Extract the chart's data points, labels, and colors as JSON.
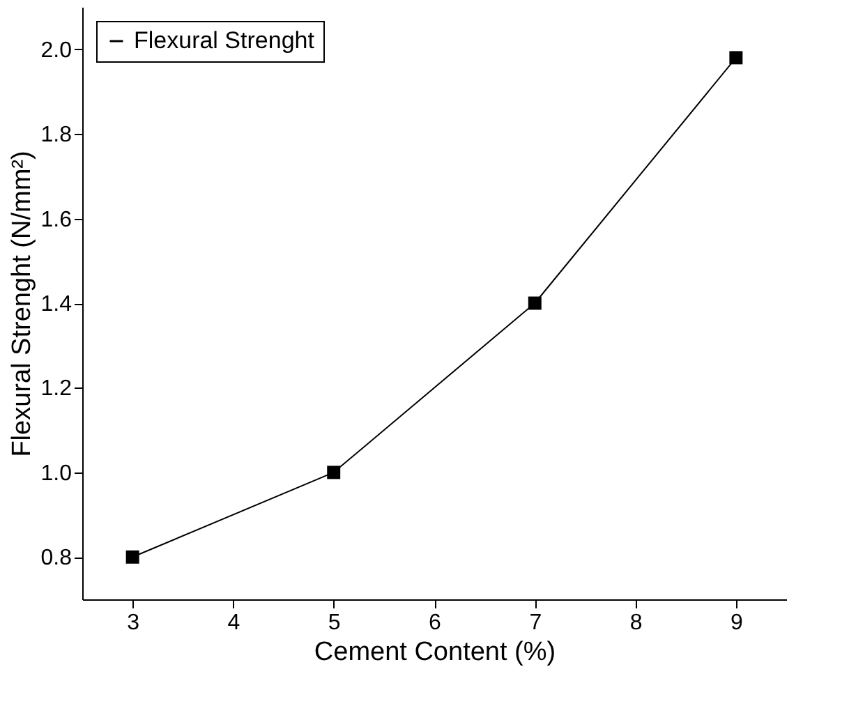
{
  "chart_data": {
    "type": "line",
    "xlabel": "Cement Content (%)",
    "ylabel": "Flexural Strenght (N/mm²)",
    "x": [
      3,
      5,
      7,
      9
    ],
    "series": [
      {
        "name": "Flexural Strenght",
        "color": "#000000",
        "values": [
          0.8,
          1.0,
          1.4,
          1.98
        ]
      }
    ],
    "xlim": [
      2.5,
      9.5
    ],
    "xticks": [
      3,
      4,
      5,
      6,
      7,
      8,
      9
    ],
    "ylim": [
      0.7,
      2.1
    ],
    "yticks": [
      0.8,
      {
        "value": 1,
        "label": "1.0"
      },
      1.2,
      1.4,
      1.6,
      1.8,
      {
        "value": 2,
        "label": "2.0"
      }
    ],
    "marker": "square",
    "line_style": "solid",
    "grid": false,
    "legend": "top left"
  }
}
